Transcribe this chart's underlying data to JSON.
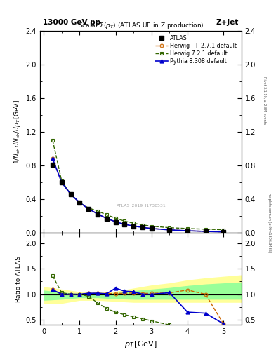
{
  "title_top": "13000 GeV pp",
  "title_right": "Z+Jet",
  "plot_title": "Scalar Σ(p_T) (ATLAS UE in Z production)",
  "watermark": "ATLAS_2019_I1736531",
  "right_label_top": "Rivet 3.1.10, ≥ 2.8M events",
  "right_label_bot": "mcplots.cern.ch [arXiv:1306.3436]",
  "atlas_x": [
    0.25,
    0.5,
    0.75,
    1.0,
    1.25,
    1.5,
    1.75,
    2.0,
    2.25,
    2.5,
    2.75,
    3.0,
    3.5,
    4.0,
    4.5,
    5.0
  ],
  "atlas_y": [
    0.81,
    0.6,
    0.46,
    0.36,
    0.28,
    0.22,
    0.17,
    0.13,
    0.1,
    0.08,
    0.065,
    0.052,
    0.035,
    0.024,
    0.016,
    0.011
  ],
  "atlas_err": [
    0.03,
    0.02,
    0.015,
    0.012,
    0.01,
    0.008,
    0.006,
    0.005,
    0.004,
    0.003,
    0.003,
    0.002,
    0.002,
    0.001,
    0.001,
    0.001
  ],
  "hppx": [
    0.25,
    0.5,
    0.75,
    1.0,
    1.25,
    1.5,
    1.75,
    2.0,
    2.25,
    2.5,
    2.75,
    3.0,
    3.5,
    4.0,
    4.5,
    5.0
  ],
  "hppy": [
    0.88,
    0.6,
    0.46,
    0.36,
    0.285,
    0.224,
    0.172,
    0.132,
    0.102,
    0.082,
    0.066,
    0.053,
    0.036,
    0.026,
    0.018,
    0.012
  ],
  "h721x": [
    0.25,
    0.5,
    0.75,
    1.0,
    1.25,
    1.5,
    1.75,
    2.0,
    2.25,
    2.5,
    2.75,
    3.0,
    3.5,
    4.0,
    4.5,
    5.0
  ],
  "h721y": [
    1.1,
    0.62,
    0.46,
    0.36,
    0.295,
    0.26,
    0.215,
    0.175,
    0.14,
    0.115,
    0.095,
    0.08,
    0.062,
    0.052,
    0.044,
    0.038
  ],
  "pythx": [
    0.25,
    0.5,
    0.75,
    1.0,
    1.25,
    1.5,
    1.75,
    2.0,
    2.25,
    2.5,
    2.75,
    3.0,
    3.5,
    4.0,
    4.5,
    5.0
  ],
  "pythy": [
    0.88,
    0.6,
    0.46,
    0.36,
    0.285,
    0.225,
    0.172,
    0.132,
    0.102,
    0.082,
    0.065,
    0.052,
    0.036,
    0.026,
    0.018,
    0.012
  ],
  "ratio_hpp": [
    1.09,
    1.0,
    1.0,
    1.0,
    1.018,
    1.018,
    1.012,
    1.015,
    1.02,
    1.025,
    1.015,
    1.019,
    1.028,
    1.083,
    1.0,
    0.42
  ],
  "ratio_h721": [
    1.36,
    1.03,
    1.0,
    1.0,
    0.96,
    0.83,
    0.72,
    0.65,
    0.6,
    0.56,
    0.52,
    0.48,
    0.4,
    0.36,
    0.33,
    0.3
  ],
  "ratio_pyth": [
    1.09,
    1.0,
    1.0,
    1.0,
    1.02,
    1.02,
    1.01,
    1.12,
    1.06,
    1.05,
    1.0,
    1.0,
    1.03,
    0.65,
    0.63,
    0.42
  ],
  "band_yellow_x": [
    0.0,
    0.5,
    1.0,
    1.5,
    2.0,
    2.5,
    3.0,
    3.5,
    4.0,
    4.5,
    5.5
  ],
  "band_yellow_lo": [
    0.82,
    0.82,
    0.88,
    0.88,
    0.86,
    0.84,
    0.84,
    0.84,
    0.84,
    0.84,
    0.84
  ],
  "band_yellow_hi": [
    1.15,
    1.1,
    1.05,
    1.04,
    1.06,
    1.12,
    1.18,
    1.22,
    1.28,
    1.32,
    1.38
  ],
  "band_green_lo": [
    0.88,
    0.9,
    0.93,
    0.93,
    0.91,
    0.9,
    0.9,
    0.9,
    0.9,
    0.9,
    0.9
  ],
  "band_green_hi": [
    1.08,
    1.04,
    1.01,
    1.01,
    1.03,
    1.07,
    1.1,
    1.13,
    1.17,
    1.2,
    1.24
  ],
  "main_ylim": [
    0.0,
    2.4
  ],
  "main_yticks": [
    0.0,
    0.4,
    0.8,
    1.2,
    1.6,
    2.0,
    2.4
  ],
  "ratio_ylim": [
    0.4,
    2.2
  ],
  "ratio_yticks": [
    0.5,
    1.0,
    1.5,
    2.0
  ],
  "xlim": [
    -0.1,
    5.5
  ],
  "xticks": [
    0,
    1,
    2,
    3,
    4,
    5
  ],
  "color_hpp": "#cc6600",
  "color_h721": "#336600",
  "color_pyth": "#0000cc",
  "color_atlas": "#000000",
  "color_yellow": "#ffff99",
  "color_green": "#99ff99"
}
